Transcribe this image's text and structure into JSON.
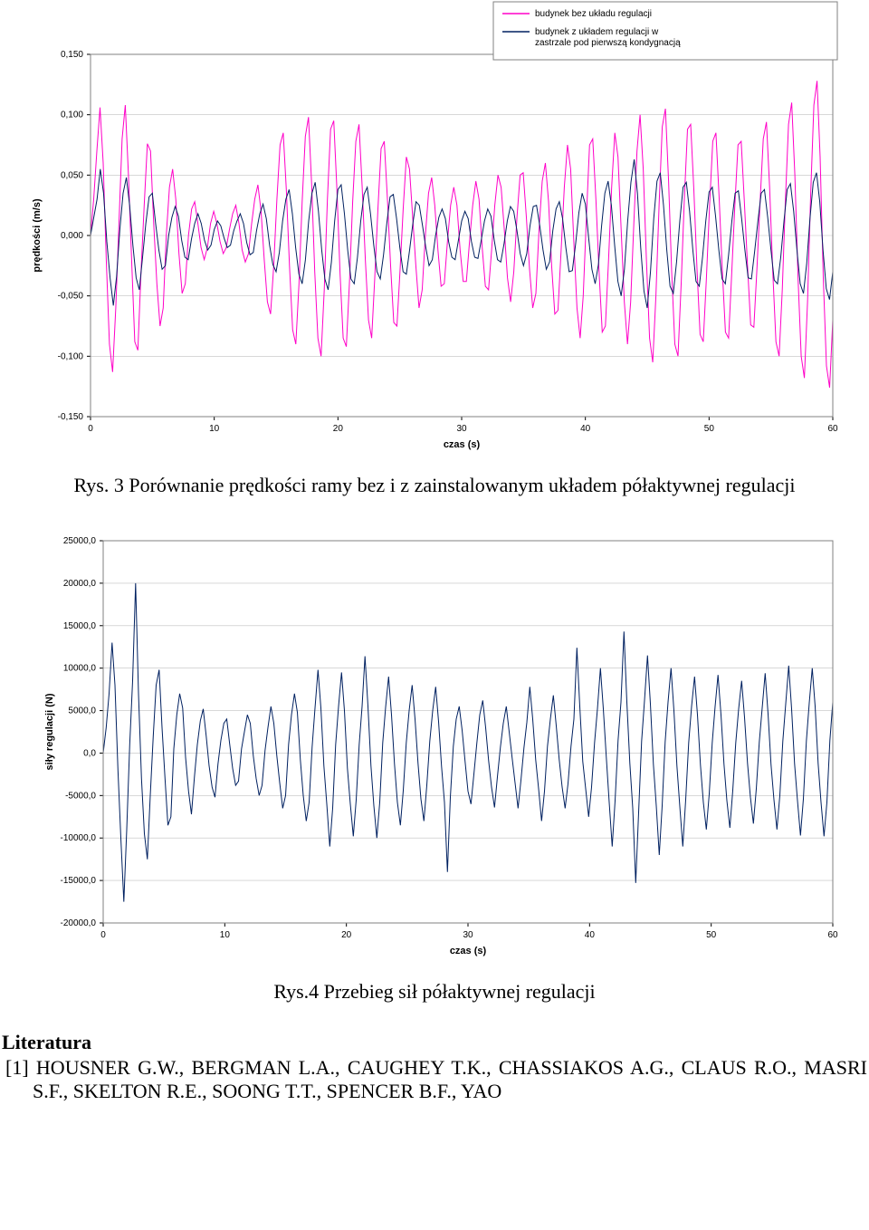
{
  "chart1": {
    "type": "line",
    "xlabel": "czas (s)",
    "ylabel": "prędkości (m/s)",
    "xlim": [
      0,
      60
    ],
    "ylim": [
      -0.15,
      0.15
    ],
    "xtick_step": 10,
    "ytick_step": 0.05,
    "ytick_labels": [
      "-0,150",
      "-0,100",
      "-0,050",
      "0,000",
      "0,050",
      "0,100",
      "0,150"
    ],
    "xtick_labels": [
      "0",
      "10",
      "20",
      "30",
      "40",
      "50",
      "60"
    ],
    "plot_bg": "#ffffff",
    "grid_color": "#c0c0c0",
    "border_color": "#808080",
    "axis_fontsize": 10,
    "title_fontsize": 11,
    "line_width": 1.0,
    "legend": {
      "items": [
        {
          "label": "budynek bez układu regulacji",
          "color": "#ff00c8"
        },
        {
          "label": "budynek z układem regulacji w zastrzale pod pierwszą kondygnacją",
          "color": "#002060"
        }
      ],
      "border_color": "#808080",
      "bg": "#ffffff"
    },
    "series": [
      {
        "name": "no-reg",
        "color": "#ff00c8",
        "data": [
          0.0,
          0.03,
          0.07,
          0.106,
          0.06,
          -0.02,
          -0.09,
          -0.113,
          -0.06,
          0.01,
          0.08,
          0.108,
          0.05,
          -0.02,
          -0.088,
          -0.095,
          -0.03,
          0.025,
          0.076,
          0.07,
          0.01,
          -0.04,
          -0.075,
          -0.06,
          0.0,
          0.04,
          0.055,
          0.03,
          -0.015,
          -0.048,
          -0.04,
          0.0,
          0.022,
          0.028,
          0.01,
          -0.01,
          -0.02,
          -0.01,
          0.01,
          0.02,
          0.01,
          -0.005,
          -0.015,
          -0.01,
          0.005,
          0.018,
          0.025,
          0.01,
          -0.012,
          -0.022,
          -0.015,
          0.01,
          0.03,
          0.042,
          0.02,
          -0.02,
          -0.055,
          -0.065,
          -0.025,
          0.03,
          0.075,
          0.085,
          0.038,
          -0.025,
          -0.078,
          -0.09,
          -0.04,
          0.028,
          0.082,
          0.098,
          0.042,
          -0.03,
          -0.085,
          -0.1,
          -0.045,
          0.03,
          0.088,
          0.095,
          0.038,
          -0.032,
          -0.085,
          -0.092,
          -0.038,
          0.028,
          0.078,
          0.092,
          0.04,
          -0.02,
          -0.07,
          -0.085,
          -0.035,
          0.022,
          0.072,
          0.078,
          0.03,
          -0.025,
          -0.072,
          -0.075,
          -0.028,
          0.022,
          0.065,
          0.055,
          0.015,
          -0.025,
          -0.06,
          -0.045,
          0.0,
          0.035,
          0.048,
          0.025,
          -0.012,
          -0.042,
          -0.04,
          -0.005,
          0.025,
          0.04,
          0.025,
          -0.012,
          -0.038,
          -0.038,
          -0.005,
          0.025,
          0.045,
          0.03,
          -0.01,
          -0.042,
          -0.045,
          -0.012,
          0.025,
          0.05,
          0.04,
          0.005,
          -0.035,
          -0.055,
          -0.03,
          0.015,
          0.05,
          0.052,
          0.015,
          -0.028,
          -0.06,
          -0.048,
          0.005,
          0.045,
          0.06,
          0.028,
          -0.025,
          -0.065,
          -0.062,
          -0.012,
          0.04,
          0.075,
          0.055,
          -0.005,
          -0.06,
          -0.085,
          -0.05,
          0.015,
          0.075,
          0.08,
          0.03,
          -0.03,
          -0.08,
          -0.075,
          -0.02,
          0.04,
          0.085,
          0.065,
          0.005,
          -0.055,
          -0.09,
          -0.055,
          0.01,
          0.07,
          0.1,
          0.055,
          -0.02,
          -0.085,
          -0.105,
          -0.05,
          0.025,
          0.09,
          0.105,
          0.045,
          -0.03,
          -0.09,
          -0.1,
          -0.04,
          0.03,
          0.088,
          0.092,
          0.038,
          -0.028,
          -0.082,
          -0.088,
          -0.035,
          0.025,
          0.078,
          0.085,
          0.032,
          -0.028,
          -0.08,
          -0.085,
          -0.032,
          0.025,
          0.075,
          0.078,
          0.028,
          -0.025,
          -0.074,
          -0.076,
          -0.026,
          0.028,
          0.08,
          0.094,
          0.04,
          -0.03,
          -0.088,
          -0.1,
          -0.045,
          0.03,
          0.092,
          0.11,
          0.05,
          -0.035,
          -0.1,
          -0.118,
          -0.055,
          0.035,
          0.108,
          0.128,
          0.065,
          -0.035,
          -0.108,
          -0.126,
          -0.07
        ]
      },
      {
        "name": "with-reg",
        "color": "#002060",
        "data": [
          0.0,
          0.015,
          0.03,
          0.055,
          0.035,
          -0.005,
          -0.035,
          -0.058,
          -0.034,
          0.005,
          0.035,
          0.048,
          0.025,
          -0.008,
          -0.035,
          -0.045,
          -0.018,
          0.01,
          0.032,
          0.035,
          0.01,
          -0.012,
          -0.028,
          -0.025,
          0.0,
          0.015,
          0.024,
          0.016,
          -0.004,
          -0.018,
          -0.02,
          -0.003,
          0.01,
          0.018,
          0.01,
          -0.004,
          -0.012,
          -0.008,
          0.005,
          0.012,
          0.008,
          -0.002,
          -0.01,
          -0.008,
          0.004,
          0.012,
          0.018,
          0.01,
          -0.006,
          -0.016,
          -0.014,
          0.004,
          0.018,
          0.026,
          0.014,
          -0.008,
          -0.024,
          -0.03,
          -0.014,
          0.012,
          0.03,
          0.038,
          0.018,
          -0.01,
          -0.032,
          -0.04,
          -0.02,
          0.012,
          0.035,
          0.044,
          0.02,
          -0.012,
          -0.036,
          -0.045,
          -0.022,
          0.012,
          0.038,
          0.042,
          0.018,
          -0.012,
          -0.036,
          -0.04,
          -0.018,
          0.012,
          0.034,
          0.04,
          0.018,
          -0.008,
          -0.03,
          -0.036,
          -0.016,
          0.01,
          0.032,
          0.034,
          0.014,
          -0.01,
          -0.03,
          -0.032,
          -0.012,
          0.01,
          0.028,
          0.025,
          0.008,
          -0.01,
          -0.025,
          -0.02,
          0.0,
          0.015,
          0.022,
          0.014,
          -0.005,
          -0.018,
          -0.02,
          -0.004,
          0.012,
          0.02,
          0.014,
          -0.005,
          -0.018,
          -0.019,
          -0.004,
          0.012,
          0.022,
          0.016,
          -0.004,
          -0.02,
          -0.022,
          -0.007,
          0.012,
          0.024,
          0.02,
          0.004,
          -0.015,
          -0.025,
          -0.015,
          0.008,
          0.024,
          0.025,
          0.008,
          -0.012,
          -0.028,
          -0.022,
          0.004,
          0.022,
          0.028,
          0.014,
          -0.01,
          -0.03,
          -0.029,
          -0.007,
          0.019,
          0.035,
          0.026,
          -0.002,
          -0.028,
          -0.04,
          -0.024,
          0.008,
          0.035,
          0.045,
          0.025,
          -0.008,
          -0.038,
          -0.05,
          -0.028,
          0.012,
          0.044,
          0.063,
          0.035,
          -0.01,
          -0.046,
          -0.06,
          -0.03,
          0.014,
          0.045,
          0.052,
          0.025,
          -0.012,
          -0.042,
          -0.048,
          -0.022,
          0.012,
          0.04,
          0.044,
          0.02,
          -0.012,
          -0.038,
          -0.042,
          -0.018,
          0.012,
          0.036,
          0.04,
          0.016,
          -0.012,
          -0.036,
          -0.04,
          -0.016,
          0.012,
          0.035,
          0.037,
          0.014,
          -0.012,
          -0.035,
          -0.036,
          -0.013,
          0.012,
          0.035,
          0.038,
          0.015,
          -0.012,
          -0.037,
          -0.04,
          -0.018,
          0.012,
          0.038,
          0.043,
          0.02,
          -0.012,
          -0.04,
          -0.048,
          -0.023,
          0.014,
          0.044,
          0.052,
          0.028,
          -0.012,
          -0.044,
          -0.053,
          -0.03
        ]
      }
    ]
  },
  "caption1": "Rys. 3 Porównanie prędkości ramy bez i z zainstalowanym układem półaktywnej regulacji",
  "chart2": {
    "type": "line",
    "xlabel": "czas (s)",
    "ylabel": "siły regulacji (N)",
    "xlim": [
      0,
      60
    ],
    "ylim": [
      -20000,
      25000
    ],
    "ytick_step": 5000,
    "xtick_step": 10,
    "ytick_labels": [
      "-20000,0",
      "-15000,0",
      "-10000,0",
      "-5000,0",
      "0,0",
      "5000,0",
      "10000,0",
      "15000,0",
      "20000,0",
      "25000,0"
    ],
    "xtick_labels": [
      "0",
      "10",
      "20",
      "30",
      "40",
      "50",
      "60"
    ],
    "plot_bg": "#ffffff",
    "grid_color": "#c0c0c0",
    "border_color": "#808080",
    "axis_fontsize": 10,
    "title_fontsize": 11,
    "line_width": 1.0,
    "series": [
      {
        "name": "force",
        "color": "#002060",
        "data": [
          0,
          3000,
          7000,
          13000,
          8000,
          -2000,
          -10000,
          -17500,
          -9000,
          1000,
          8500,
          20000,
          7000,
          -3000,
          -9500,
          -12500,
          -5000,
          2000,
          8000,
          9800,
          3000,
          -3000,
          -8500,
          -7500,
          500,
          4500,
          7000,
          5300,
          -500,
          -4500,
          -7200,
          -2800,
          1000,
          3800,
          5200,
          2000,
          -1500,
          -4000,
          -5200,
          -1300,
          1500,
          3500,
          4000,
          1000,
          -1800,
          -3800,
          -3300,
          500,
          2500,
          4500,
          3500,
          -300,
          -3000,
          -5000,
          -3800,
          300,
          3000,
          5500,
          3500,
          -300,
          -3500,
          -6500,
          -5000,
          1000,
          4500,
          7000,
          4800,
          -800,
          -5000,
          -8000,
          -5800,
          700,
          5300,
          9800,
          5300,
          -1500,
          -6000,
          -11000,
          -6500,
          1000,
          5500,
          9500,
          5000,
          -1800,
          -6000,
          -9800,
          -5500,
          1000,
          5500,
          11400,
          5500,
          -1500,
          -6200,
          -10000,
          -5800,
          1200,
          5400,
          9000,
          4500,
          -1300,
          -5800,
          -8500,
          -4400,
          1200,
          5000,
          8000,
          4000,
          -1200,
          -5400,
          -8000,
          -3800,
          1400,
          5000,
          7800,
          3700,
          -1600,
          -5800,
          -14000,
          -5200,
          800,
          4000,
          5500,
          2700,
          -1000,
          -4500,
          -6000,
          -2500,
          1200,
          4500,
          6200,
          3000,
          -900,
          -4000,
          -6400,
          -2800,
          700,
          3500,
          5500,
          2500,
          -600,
          -3500,
          -6500,
          -3200,
          600,
          3600,
          7800,
          4000,
          -800,
          -4200,
          -8000,
          -4500,
          800,
          4000,
          6800,
          3200,
          -800,
          -4000,
          -6500,
          -3600,
          800,
          4000,
          12400,
          5500,
          -1000,
          -4200,
          -7500,
          -4000,
          1200,
          5200,
          10000,
          5200,
          -500,
          -5800,
          -11000,
          -5600,
          1500,
          6000,
          14300,
          6000,
          -1200,
          -6500,
          -15300,
          -7000,
          1400,
          6200,
          11500,
          5800,
          -1300,
          -6200,
          -12000,
          -6200,
          1300,
          6000,
          10000,
          5000,
          -1500,
          -6300,
          -11000,
          -5500,
          1200,
          5500,
          9000,
          4500,
          -1400,
          -5800,
          -9000,
          -4800,
          1200,
          5500,
          9200,
          4500,
          -1300,
          -5600,
          -8800,
          -4400,
          1200,
          5200,
          8500,
          4200,
          -1200,
          -5200,
          -8300,
          -4200,
          1300,
          5300,
          9400,
          4600,
          -1400,
          -5500,
          -9000,
          -5000,
          1400,
          5800,
          10300,
          5200,
          -1300,
          -5600,
          -9700,
          -5400,
          1400,
          5900,
          10000,
          5500,
          -1200,
          -5800,
          -9800,
          -5800,
          1500,
          6000
        ]
      }
    ]
  },
  "caption2": "Rys.4 Przebieg sił półaktywnej regulacji",
  "lit_heading": "Literatura",
  "ref1": "[1] HOUSNER G.W., BERGMAN L.A., CAUGHEY T.K., CHASSIAKOS A.G., CLAUS R.O., MASRI S.F., SKELTON R.E., SOONG T.T., SPENCER B.F., YAO"
}
